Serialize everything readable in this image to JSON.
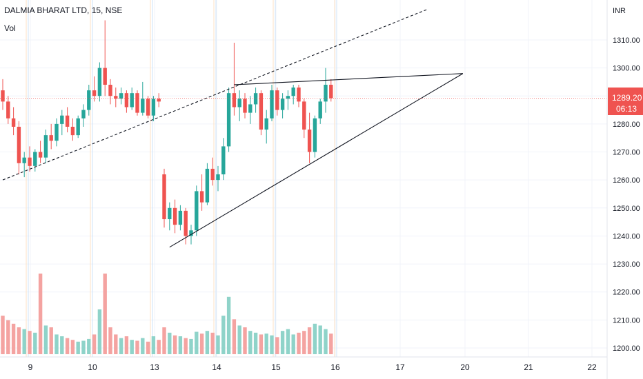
{
  "header": {
    "symbol_title": "DALMIA BHARAT LTD, 15, NSE",
    "volume_label": "Vol"
  },
  "price_axis": {
    "currency": "INR",
    "ticks": [
      "1310.00",
      "1300.00",
      "1290.00",
      "1280.00",
      "1270.00",
      "1260.00",
      "1250.00",
      "1240.00",
      "1230.00",
      "1220.00",
      "1210.00",
      "1200.00"
    ]
  },
  "last_price": {
    "value": "1289.20",
    "countdown": "06:13",
    "color": "#ef5350"
  },
  "colors": {
    "up": "#26a69a",
    "down": "#ef5350",
    "up_volume": "#8fd3c9",
    "down_volume": "#f4a3a1",
    "grid": "#f0f3fa"
  },
  "chart_data": {
    "type": "candlestick",
    "symbol": "DALMIA BHARAT LTD",
    "interval": "15",
    "exchange": "NSE",
    "ylim": [
      1196,
      1321
    ],
    "y_ticks": [
      1200,
      1210,
      1220,
      1230,
      1240,
      1250,
      1260,
      1270,
      1280,
      1290,
      1300,
      1310
    ],
    "x_tick_labels": [
      "9",
      "10",
      "13",
      "14",
      "15",
      "16",
      "17",
      "20",
      "21",
      "22"
    ],
    "last_price": 1289.2,
    "candles": [
      {
        "o": 1292,
        "h": 1296,
        "l": 1285,
        "c": 1288
      },
      {
        "o": 1288,
        "h": 1290,
        "l": 1280,
        "c": 1282
      },
      {
        "o": 1282,
        "h": 1286,
        "l": 1276,
        "c": 1279
      },
      {
        "o": 1279,
        "h": 1281,
        "l": 1262,
        "c": 1266
      },
      {
        "o": 1266,
        "h": 1270,
        "l": 1261,
        "c": 1268
      },
      {
        "o": 1268,
        "h": 1272,
        "l": 1263,
        "c": 1265
      },
      {
        "o": 1265,
        "h": 1271,
        "l": 1263,
        "c": 1270
      },
      {
        "o": 1270,
        "h": 1274,
        "l": 1266,
        "c": 1268
      },
      {
        "o": 1268,
        "h": 1278,
        "l": 1266,
        "c": 1276
      },
      {
        "o": 1276,
        "h": 1280,
        "l": 1271,
        "c": 1274
      },
      {
        "o": 1274,
        "h": 1282,
        "l": 1272,
        "c": 1280
      },
      {
        "o": 1280,
        "h": 1285,
        "l": 1276,
        "c": 1283
      },
      {
        "o": 1283,
        "h": 1286,
        "l": 1277,
        "c": 1279
      },
      {
        "o": 1279,
        "h": 1282,
        "l": 1274,
        "c": 1276
      },
      {
        "o": 1276,
        "h": 1283,
        "l": 1275,
        "c": 1282
      },
      {
        "o": 1282,
        "h": 1287,
        "l": 1279,
        "c": 1285
      },
      {
        "o": 1285,
        "h": 1294,
        "l": 1283,
        "c": 1292
      },
      {
        "o": 1292,
        "h": 1297,
        "l": 1288,
        "c": 1290
      },
      {
        "o": 1290,
        "h": 1302,
        "l": 1288,
        "c": 1300
      },
      {
        "o": 1300,
        "h": 1317,
        "l": 1290,
        "c": 1294
      },
      {
        "o": 1294,
        "h": 1296,
        "l": 1287,
        "c": 1290
      },
      {
        "o": 1290,
        "h": 1293,
        "l": 1286,
        "c": 1289
      },
      {
        "o": 1289,
        "h": 1293,
        "l": 1287,
        "c": 1291
      },
      {
        "o": 1291,
        "h": 1292,
        "l": 1284,
        "c": 1286
      },
      {
        "o": 1286,
        "h": 1293,
        "l": 1285,
        "c": 1291
      },
      {
        "o": 1291,
        "h": 1292,
        "l": 1283,
        "c": 1284
      },
      {
        "o": 1284,
        "h": 1295,
        "l": 1283,
        "c": 1289
      },
      {
        "o": 1289,
        "h": 1290,
        "l": 1282,
        "c": 1283
      },
      {
        "o": 1283,
        "h": 1290,
        "l": 1281,
        "c": 1289
      },
      {
        "o": 1289,
        "h": 1291,
        "l": 1286,
        "c": 1288
      },
      {
        "o": 1262,
        "h": 1264,
        "l": 1243,
        "c": 1246
      },
      {
        "o": 1246,
        "h": 1252,
        "l": 1242,
        "c": 1250
      },
      {
        "o": 1250,
        "h": 1253,
        "l": 1241,
        "c": 1244
      },
      {
        "o": 1244,
        "h": 1251,
        "l": 1242,
        "c": 1249
      },
      {
        "o": 1249,
        "h": 1250,
        "l": 1237,
        "c": 1240
      },
      {
        "o": 1240,
        "h": 1244,
        "l": 1237,
        "c": 1242
      },
      {
        "o": 1242,
        "h": 1258,
        "l": 1240,
        "c": 1256
      },
      {
        "o": 1256,
        "h": 1262,
        "l": 1249,
        "c": 1252
      },
      {
        "o": 1252,
        "h": 1266,
        "l": 1251,
        "c": 1264
      },
      {
        "o": 1264,
        "h": 1268,
        "l": 1258,
        "c": 1260
      },
      {
        "o": 1260,
        "h": 1265,
        "l": 1256,
        "c": 1262
      },
      {
        "o": 1262,
        "h": 1275,
        "l": 1260,
        "c": 1272
      },
      {
        "o": 1272,
        "h": 1293,
        "l": 1270,
        "c": 1291
      },
      {
        "o": 1291,
        "h": 1309,
        "l": 1283,
        "c": 1286
      },
      {
        "o": 1286,
        "h": 1292,
        "l": 1281,
        "c": 1289
      },
      {
        "o": 1289,
        "h": 1291,
        "l": 1282,
        "c": 1284
      },
      {
        "o": 1284,
        "h": 1290,
        "l": 1280,
        "c": 1287
      },
      {
        "o": 1287,
        "h": 1293,
        "l": 1284,
        "c": 1291
      },
      {
        "o": 1291,
        "h": 1292,
        "l": 1276,
        "c": 1278
      },
      {
        "o": 1278,
        "h": 1285,
        "l": 1273,
        "c": 1282
      },
      {
        "o": 1282,
        "h": 1294,
        "l": 1281,
        "c": 1292
      },
      {
        "o": 1292,
        "h": 1293,
        "l": 1283,
        "c": 1285
      },
      {
        "o": 1285,
        "h": 1291,
        "l": 1282,
        "c": 1289
      },
      {
        "o": 1289,
        "h": 1292,
        "l": 1285,
        "c": 1290
      },
      {
        "o": 1290,
        "h": 1294,
        "l": 1287,
        "c": 1293
      },
      {
        "o": 1293,
        "h": 1294,
        "l": 1286,
        "c": 1288
      },
      {
        "o": 1288,
        "h": 1289,
        "l": 1275,
        "c": 1278
      },
      {
        "o": 1278,
        "h": 1284,
        "l": 1266,
        "c": 1270
      },
      {
        "o": 1270,
        "h": 1283,
        "l": 1268,
        "c": 1282
      },
      {
        "o": 1282,
        "h": 1289,
        "l": 1280,
        "c": 1288
      },
      {
        "o": 1288,
        "h": 1300,
        "l": 1284,
        "c": 1294
      },
      {
        "o": 1294,
        "h": 1296,
        "l": 1288,
        "c": 1289.2
      }
    ],
    "volume_ylim": [
      0,
      1000
    ],
    "volume": [
      430,
      380,
      340,
      300,
      280,
      260,
      240,
      900,
      320,
      300,
      220,
      200,
      180,
      160,
      140,
      150,
      170,
      220,
      500,
      900,
      300,
      220,
      180,
      200,
      160,
      150,
      180,
      140,
      200,
      160,
      300,
      240,
      210,
      200,
      180,
      170,
      250,
      230,
      260,
      240,
      210,
      430,
      640,
      390,
      320,
      300,
      260,
      240,
      220,
      230,
      210,
      190,
      260,
      280,
      220,
      240,
      260,
      300,
      340,
      320,
      280,
      230
    ],
    "drawings": [
      {
        "name": "upper-parallel-channel-line",
        "style": "dashed",
        "points": [
          [
            0,
            1260
          ],
          [
            79,
            1321
          ]
        ]
      },
      {
        "name": "triangle-resistance-line",
        "style": "solid",
        "points": [
          [
            43,
            1294
          ],
          [
            85.5,
            1298
          ]
        ]
      },
      {
        "name": "triangle-support-line",
        "style": "solid",
        "points": [
          [
            31,
            1236
          ],
          [
            85.5,
            1298
          ]
        ]
      }
    ]
  }
}
